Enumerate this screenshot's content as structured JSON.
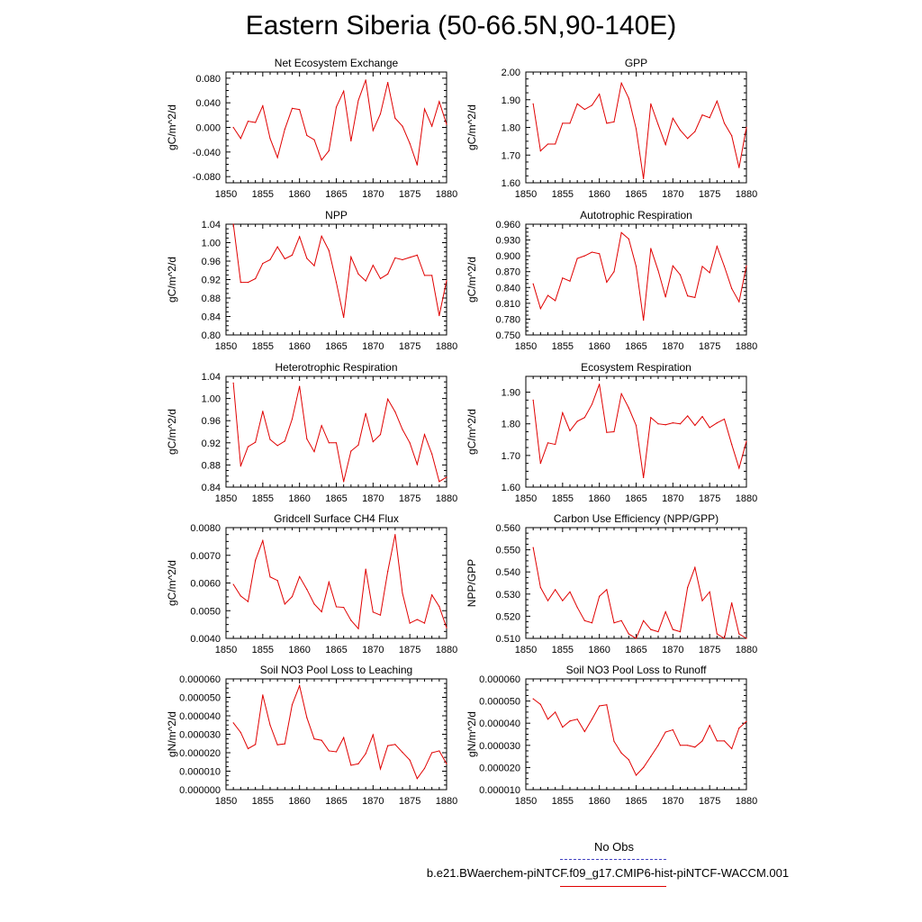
{
  "page": {
    "title": "Eastern Siberia (50-66.5N,90-140E)",
    "legend_noobs": "No Obs",
    "legend_run": "b.e21.BWaerchem-piNTCF.f09_g17.CMIP6-hist-piNTCF-WACCM.001",
    "series_color": "#e00000",
    "noobs_color": "#4040c0"
  },
  "chart_data": [
    {
      "type": "line",
      "title": "Net Ecosystem Exchange",
      "ylabel": "gC/m^2/d",
      "xlim": [
        1850,
        1880
      ],
      "ylim": [
        -0.09,
        0.09
      ],
      "xticks": [
        "1850",
        "1855",
        "1860",
        "1865",
        "1870",
        "1875",
        "1880"
      ],
      "yticks": [
        "-0.080",
        "-0.040",
        "0.000",
        "0.040",
        "0.080"
      ],
      "x": [
        1851,
        1852,
        1853,
        1854,
        1855,
        1856,
        1857,
        1858,
        1859,
        1860,
        1861,
        1862,
        1863,
        1864,
        1865,
        1866,
        1867,
        1868,
        1869,
        1870,
        1871,
        1872,
        1873,
        1874,
        1875,
        1876,
        1877,
        1878,
        1879,
        1880
      ],
      "values": [
        0.0,
        -0.018,
        0.01,
        0.008,
        0.035,
        -0.018,
        -0.049,
        -0.003,
        0.031,
        0.029,
        -0.013,
        -0.02,
        -0.053,
        -0.038,
        0.033,
        0.059,
        -0.022,
        0.044,
        0.077,
        -0.005,
        0.022,
        0.073,
        0.015,
        0.002,
        -0.026,
        -0.061,
        0.03,
        0.002,
        0.042,
        0.005
      ]
    },
    {
      "type": "line",
      "title": "GPP",
      "ylabel": "gC/m^2/d",
      "xlim": [
        1850,
        1880
      ],
      "ylim": [
        1.6,
        2.0
      ],
      "xticks": [
        "1850",
        "1855",
        "1860",
        "1865",
        "1870",
        "1875",
        "1880"
      ],
      "yticks": [
        "1.60",
        "1.70",
        "1.80",
        "1.90",
        "2.00"
      ],
      "x": [
        1851,
        1852,
        1853,
        1854,
        1855,
        1856,
        1857,
        1858,
        1859,
        1860,
        1861,
        1862,
        1863,
        1864,
        1865,
        1866,
        1867,
        1868,
        1869,
        1870,
        1871,
        1872,
        1873,
        1874,
        1875,
        1876,
        1877,
        1878,
        1879,
        1880
      ],
      "values": [
        1.885,
        1.715,
        1.74,
        1.74,
        1.815,
        1.815,
        1.885,
        1.865,
        1.88,
        1.92,
        1.815,
        1.82,
        1.96,
        1.905,
        1.795,
        1.615,
        1.885,
        1.81,
        1.738,
        1.833,
        1.79,
        1.76,
        1.785,
        1.845,
        1.835,
        1.895,
        1.815,
        1.77,
        1.655,
        1.8
      ]
    },
    {
      "type": "line",
      "title": "NPP",
      "ylabel": "gC/m^2/d",
      "xlim": [
        1850,
        1880
      ],
      "ylim": [
        0.8,
        1.04
      ],
      "xticks": [
        "1850",
        "1855",
        "1860",
        "1865",
        "1870",
        "1875",
        "1880"
      ],
      "yticks": [
        "0.80",
        "0.84",
        "0.88",
        "0.92",
        "0.96",
        "1.00",
        "1.04"
      ],
      "x": [
        1851,
        1852,
        1853,
        1854,
        1855,
        1856,
        1857,
        1858,
        1859,
        1860,
        1861,
        1862,
        1863,
        1864,
        1865,
        1866,
        1867,
        1868,
        1869,
        1870,
        1871,
        1872,
        1873,
        1874,
        1875,
        1876,
        1877,
        1878,
        1879,
        1880
      ],
      "values": [
        1.04,
        0.914,
        0.914,
        0.922,
        0.955,
        0.963,
        0.991,
        0.965,
        0.973,
        1.013,
        0.966,
        0.95,
        1.014,
        0.983,
        0.914,
        0.838,
        0.969,
        0.932,
        0.917,
        0.951,
        0.922,
        0.932,
        0.967,
        0.963,
        0.968,
        0.973,
        0.929,
        0.929,
        0.842,
        0.918
      ]
    },
    {
      "type": "line",
      "title": "Autotrophic Respiration",
      "ylabel": "gC/m^2/d",
      "xlim": [
        1850,
        1880
      ],
      "ylim": [
        0.75,
        0.96
      ],
      "xticks": [
        "1850",
        "1855",
        "1860",
        "1865",
        "1870",
        "1875",
        "1880"
      ],
      "yticks": [
        "0.750",
        "0.780",
        "0.810",
        "0.840",
        "0.870",
        "0.900",
        "0.930",
        "0.960"
      ],
      "x": [
        1851,
        1852,
        1853,
        1854,
        1855,
        1856,
        1857,
        1858,
        1859,
        1860,
        1861,
        1862,
        1863,
        1864,
        1865,
        1866,
        1867,
        1868,
        1869,
        1870,
        1871,
        1872,
        1873,
        1874,
        1875,
        1876,
        1877,
        1878,
        1879,
        1880
      ],
      "values": [
        0.847,
        0.8,
        0.825,
        0.815,
        0.858,
        0.852,
        0.895,
        0.9,
        0.907,
        0.904,
        0.85,
        0.87,
        0.944,
        0.932,
        0.88,
        0.778,
        0.914,
        0.872,
        0.822,
        0.881,
        0.864,
        0.824,
        0.821,
        0.88,
        0.868,
        0.918,
        0.88,
        0.838,
        0.813,
        0.881
      ]
    },
    {
      "type": "line",
      "title": "Heterotrophic Respiration",
      "ylabel": "gC/m^2/d",
      "xlim": [
        1850,
        1880
      ],
      "ylim": [
        0.84,
        1.04
      ],
      "xticks": [
        "1850",
        "1855",
        "1860",
        "1865",
        "1870",
        "1875",
        "1880"
      ],
      "yticks": [
        "0.84",
        "0.88",
        "0.92",
        "0.96",
        "1.00",
        "1.04"
      ],
      "x": [
        1851,
        1852,
        1853,
        1854,
        1855,
        1856,
        1857,
        1858,
        1859,
        1860,
        1861,
        1862,
        1863,
        1864,
        1865,
        1866,
        1867,
        1868,
        1869,
        1870,
        1871,
        1872,
        1873,
        1874,
        1875,
        1876,
        1877,
        1878,
        1879,
        1880
      ],
      "values": [
        1.028,
        0.878,
        0.913,
        0.921,
        0.977,
        0.926,
        0.915,
        0.923,
        0.963,
        1.022,
        0.927,
        0.904,
        0.951,
        0.92,
        0.92,
        0.85,
        0.905,
        0.916,
        0.973,
        0.922,
        0.935,
        0.999,
        0.976,
        0.944,
        0.92,
        0.881,
        0.935,
        0.9,
        0.85,
        0.858
      ]
    },
    {
      "type": "line",
      "title": "Ecosystem Respiration",
      "ylabel": "gC/m^2/d",
      "xlim": [
        1850,
        1880
      ],
      "ylim": [
        1.6,
        1.95
      ],
      "xticks": [
        "1850",
        "1855",
        "1860",
        "1865",
        "1870",
        "1875",
        "1880"
      ],
      "yticks": [
        "1.60",
        "1.70",
        "1.80",
        "1.90"
      ],
      "x": [
        1851,
        1852,
        1853,
        1854,
        1855,
        1856,
        1857,
        1858,
        1859,
        1860,
        1861,
        1862,
        1863,
        1864,
        1865,
        1866,
        1867,
        1868,
        1869,
        1870,
        1871,
        1872,
        1873,
        1874,
        1875,
        1876,
        1877,
        1878,
        1879,
        1880
      ],
      "values": [
        1.875,
        1.675,
        1.74,
        1.735,
        1.835,
        1.778,
        1.808,
        1.82,
        1.862,
        1.925,
        1.773,
        1.775,
        1.895,
        1.85,
        1.795,
        1.63,
        1.82,
        1.8,
        1.797,
        1.803,
        1.8,
        1.825,
        1.795,
        1.823,
        1.788,
        1.803,
        1.815,
        1.735,
        1.66,
        1.745
      ]
    },
    {
      "type": "line",
      "title": "Gridcell Surface CH4 Flux",
      "ylabel": "gC/m^2/d",
      "xlim": [
        1850,
        1880
      ],
      "ylim": [
        0.004,
        0.008
      ],
      "xticks": [
        "1850",
        "1855",
        "1860",
        "1865",
        "1870",
        "1875",
        "1880"
      ],
      "yticks": [
        "0.0040",
        "0.0050",
        "0.0060",
        "0.0070",
        "0.0080"
      ],
      "x": [
        1851,
        1852,
        1853,
        1854,
        1855,
        1856,
        1857,
        1858,
        1859,
        1860,
        1861,
        1862,
        1863,
        1864,
        1865,
        1866,
        1867,
        1868,
        1869,
        1870,
        1871,
        1872,
        1873,
        1874,
        1875,
        1876,
        1877,
        1878,
        1879,
        1880
      ],
      "values": [
        0.00595,
        0.00553,
        0.00533,
        0.00682,
        0.00753,
        0.00622,
        0.00609,
        0.00524,
        0.00551,
        0.00623,
        0.00577,
        0.00524,
        0.00496,
        0.00603,
        0.00514,
        0.00512,
        0.00465,
        0.00435,
        0.0065,
        0.00495,
        0.00484,
        0.00642,
        0.00775,
        0.00563,
        0.00455,
        0.00468,
        0.00455,
        0.00557,
        0.00515,
        0.00438
      ]
    },
    {
      "type": "line",
      "title": "Carbon Use Efficiency (NPP/GPP)",
      "ylabel": "NPP/GPP",
      "xlim": [
        1850,
        1880
      ],
      "ylim": [
        0.51,
        0.56
      ],
      "xticks": [
        "1850",
        "1855",
        "1860",
        "1865",
        "1870",
        "1875",
        "1880"
      ],
      "yticks": [
        "0.510",
        "0.520",
        "0.530",
        "0.540",
        "0.550",
        "0.560"
      ],
      "x": [
        1851,
        1852,
        1853,
        1854,
        1855,
        1856,
        1857,
        1858,
        1859,
        1860,
        1861,
        1862,
        1863,
        1864,
        1865,
        1866,
        1867,
        1868,
        1869,
        1870,
        1871,
        1872,
        1873,
        1874,
        1875,
        1876,
        1877,
        1878,
        1879,
        1880
      ],
      "values": [
        0.551,
        0.533,
        0.527,
        0.532,
        0.527,
        0.531,
        0.524,
        0.518,
        0.517,
        0.529,
        0.532,
        0.517,
        0.518,
        0.512,
        0.51,
        0.518,
        0.514,
        0.513,
        0.522,
        0.514,
        0.513,
        0.533,
        0.542,
        0.527,
        0.531,
        0.512,
        0.51,
        0.526,
        0.512,
        0.51
      ]
    },
    {
      "type": "line",
      "title": "Soil NO3 Pool Loss to Leaching",
      "ylabel": "gN/m^2/d",
      "xlim": [
        1850,
        1880
      ],
      "ylim": [
        0.0,
        6e-05
      ],
      "xticks": [
        "1850",
        "1855",
        "1860",
        "1865",
        "1870",
        "1875",
        "1880"
      ],
      "yticks": [
        "0.000000",
        "0.000010",
        "0.000020",
        "0.000030",
        "0.000040",
        "0.000050",
        "0.000060"
      ],
      "x": [
        1851,
        1852,
        1853,
        1854,
        1855,
        1856,
        1857,
        1858,
        1859,
        1860,
        1861,
        1862,
        1863,
        1864,
        1865,
        1866,
        1867,
        1868,
        1869,
        1870,
        1871,
        1872,
        1873,
        1874,
        1875,
        1876,
        1877,
        1878,
        1879,
        1880
      ],
      "values": [
        3.62e-05,
        3.1e-05,
        2.22e-05,
        2.45e-05,
        5.13e-05,
        3.5e-05,
        2.43e-05,
        2.48e-05,
        4.6e-05,
        5.63e-05,
        3.9e-05,
        2.75e-05,
        2.67e-05,
        2.1e-05,
        2.05e-05,
        2.82e-05,
        1.32e-05,
        1.4e-05,
        1.95e-05,
        2.97e-05,
        1.12e-05,
        2.38e-05,
        2.45e-05,
        2.02e-05,
        1.6e-05,
        6e-06,
        1.15e-05,
        2e-05,
        2.1e-05,
        1.4e-05
      ]
    },
    {
      "type": "line",
      "title": "Soil NO3 Pool Loss to Runoff",
      "ylabel": "gN/m^2/d",
      "xlim": [
        1850,
        1880
      ],
      "ylim": [
        1e-05,
        6e-05
      ],
      "xticks": [
        "1850",
        "1855",
        "1860",
        "1865",
        "1870",
        "1875",
        "1880"
      ],
      "yticks": [
        "0.000010",
        "0.000020",
        "0.000030",
        "0.000040",
        "0.000050",
        "0.000060"
      ],
      "x": [
        1851,
        1852,
        1853,
        1854,
        1855,
        1856,
        1857,
        1858,
        1859,
        1860,
        1861,
        1862,
        1863,
        1864,
        1865,
        1866,
        1867,
        1868,
        1869,
        1870,
        1871,
        1872,
        1873,
        1874,
        1875,
        1876,
        1877,
        1878,
        1879,
        1880
      ],
      "values": [
        5.1e-05,
        4.85e-05,
        4.18e-05,
        4.5e-05,
        3.82e-05,
        4.1e-05,
        4.18e-05,
        3.62e-05,
        4.18e-05,
        4.78e-05,
        4.83e-05,
        3.18e-05,
        2.65e-05,
        2.35e-05,
        1.65e-05,
        2e-05,
        2.5e-05,
        3e-05,
        3.6e-05,
        3.7e-05,
        3e-05,
        3e-05,
        2.92e-05,
        3.2e-05,
        3.9e-05,
        3.2e-05,
        3.2e-05,
        2.85e-05,
        3.78e-05,
        4.08e-05
      ]
    }
  ]
}
